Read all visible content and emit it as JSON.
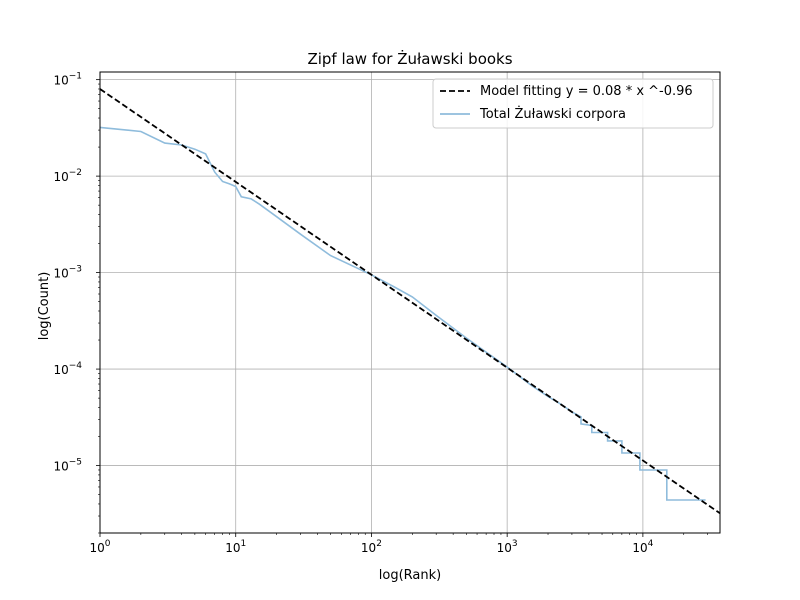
{
  "chart_data": {
    "type": "line",
    "title": "Zipf law for Żuławski books",
    "xlabel": "log(Rank)",
    "ylabel": "log(Count)",
    "xscale": "log",
    "yscale": "log",
    "xlim": [
      1,
      37000
    ],
    "ylim": [
      2e-06,
      0.12
    ],
    "grid": true,
    "legend_position": "top-right",
    "x_ticks": [
      {
        "value": 1,
        "mantissa": "10",
        "exp": "0"
      },
      {
        "value": 10,
        "mantissa": "10",
        "exp": "1"
      },
      {
        "value": 100,
        "mantissa": "10",
        "exp": "2"
      },
      {
        "value": 1000,
        "mantissa": "10",
        "exp": "3"
      },
      {
        "value": 10000,
        "mantissa": "10",
        "exp": "4"
      }
    ],
    "y_ticks": [
      {
        "value": 1e-05,
        "mantissa": "10",
        "exp": "−5"
      },
      {
        "value": 0.0001,
        "mantissa": "10",
        "exp": "−4"
      },
      {
        "value": 0.001,
        "mantissa": "10",
        "exp": "−3"
      },
      {
        "value": 0.01,
        "mantissa": "10",
        "exp": "−2"
      },
      {
        "value": 0.1,
        "mantissa": "10",
        "exp": "−1"
      }
    ],
    "series": [
      {
        "name": "Model fitting y = 0.08 * x ^-0.96",
        "style": "dashed",
        "color": "#000000",
        "x": [
          1,
          37000
        ],
        "y": [
          0.08,
          3.2e-06
        ]
      },
      {
        "name": "Total Żuławski corpora",
        "style": "solid",
        "color": "#8fbcdc",
        "x": [
          1,
          2,
          3,
          4,
          5,
          6,
          7,
          8,
          9,
          10,
          11,
          13,
          15,
          20,
          30,
          50,
          100,
          150,
          200,
          300,
          500,
          700,
          1000,
          1500,
          2000,
          2500,
          3000,
          3500,
          3500,
          4200,
          4200,
          5500,
          5500,
          7000,
          7000,
          9500,
          9500,
          15000,
          15000,
          29000
        ],
        "y": [
          0.032,
          0.029,
          0.022,
          0.021,
          0.019,
          0.017,
          0.011,
          0.0088,
          0.0083,
          0.0078,
          0.0061,
          0.0058,
          0.0051,
          0.0038,
          0.0025,
          0.0015,
          0.00095,
          0.0007,
          0.00056,
          0.00036,
          0.00021,
          0.00015,
          0.000105,
          6.8e-05,
          5.2e-05,
          4.3e-05,
          3.6e-05,
          3.2e-05,
          2.7e-05,
          2.6e-05,
          2.2e-05,
          2.2e-05,
          1.8e-05,
          1.8e-05,
          1.35e-05,
          1.35e-05,
          9e-06,
          9e-06,
          4.4e-06,
          4.4e-06
        ]
      }
    ]
  }
}
